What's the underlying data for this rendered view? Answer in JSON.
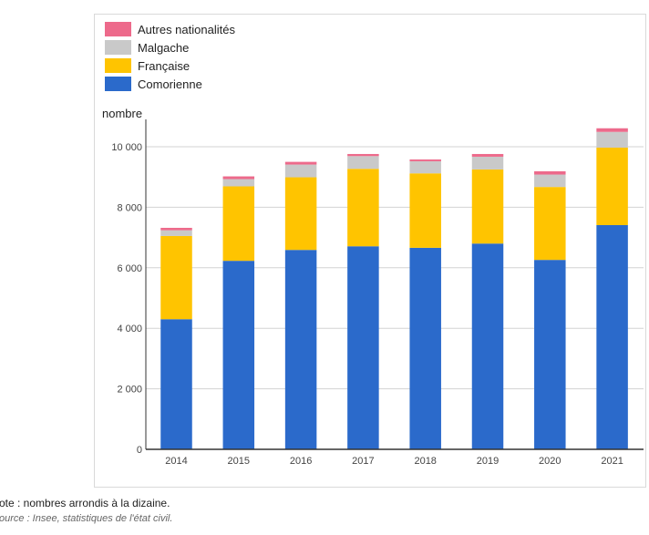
{
  "chart_data": {
    "type": "bar",
    "stacked": true,
    "categories": [
      "2014",
      "2015",
      "2016",
      "2017",
      "2018",
      "2019",
      "2020",
      "2021"
    ],
    "series": [
      {
        "name": "Comorienne",
        "color": "#2b6acb",
        "values": [
          4300,
          6230,
          6590,
          6710,
          6660,
          6800,
          6260,
          7410
        ]
      },
      {
        "name": "Française",
        "color": "#ffc400",
        "values": [
          2750,
          2460,
          2400,
          2560,
          2460,
          2450,
          2410,
          2560
        ]
      },
      {
        "name": "Malgache",
        "color": "#c9c9c9",
        "values": [
          190,
          240,
          420,
          420,
          400,
          420,
          410,
          520
        ]
      },
      {
        "name": "Autres nationalités",
        "color": "#ed6a8b",
        "values": [
          80,
          90,
          90,
          70,
          60,
          90,
          110,
          120
        ]
      }
    ],
    "legend_order": [
      "Autres nationalités",
      "Malgache",
      "Française",
      "Comorienne"
    ],
    "ylabel": "nombre",
    "ylim": [
      0,
      11000
    ],
    "yticks": [
      0,
      2000,
      4000,
      6000,
      8000,
      10000
    ],
    "ytick_labels": [
      "0",
      "2 000",
      "4 000",
      "6 000",
      "8 000",
      "10 000"
    ],
    "grid": true,
    "legend_position": "top-left"
  },
  "footer": {
    "note": "ote : nombres arrondis à la dizaine.",
    "source": "ource : Insee, statistiques de l'état civil."
  }
}
